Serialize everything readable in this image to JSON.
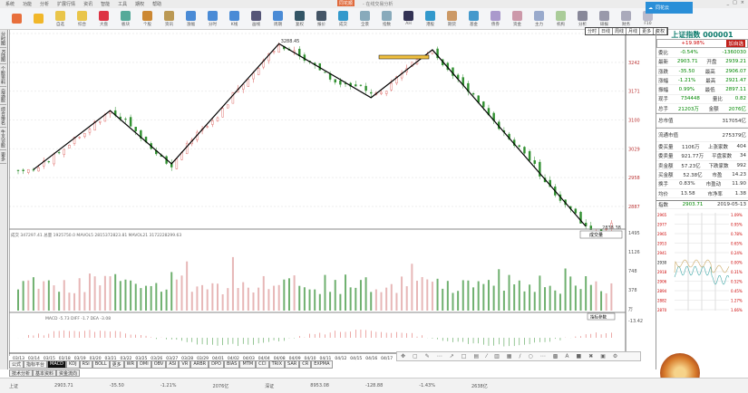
{
  "menu": [
    "系统",
    "功能",
    "分析",
    "扩展行情",
    "资讯",
    "智能",
    "工具",
    "期权",
    "帮助"
  ],
  "app": {
    "brand": "同花顺",
    "title": "- 在线交易分析",
    "window_controls": [
      "_",
      "□",
      "×"
    ],
    "cloud_label": "同花云"
  },
  "toolbar": [
    "",
    "",
    "自选",
    "综合",
    "大盘",
    "板块",
    "个股",
    "资讯",
    "涨幅",
    "分时",
    "K线",
    "画线",
    "周期",
    "复权",
    "报价",
    "成交",
    "全景",
    "指数",
    "AH",
    "港股",
    "期货",
    "基金",
    "债券",
    "资金",
    "主力",
    "机构",
    "分析",
    "研报",
    "财务",
    "F10"
  ],
  "left_tabs": [
    "分时图",
    "K线图",
    "个股资料",
    "自选股",
    "综合排名",
    "牛叉诊股",
    "更多"
  ],
  "periods": [
    "分时",
    "日线",
    "周线",
    "月线",
    "更多",
    "复权"
  ],
  "chart": {
    "price_axis": [
      "3313",
      "3242",
      "3171",
      "3100",
      "3029",
      "2958",
      "2887"
    ],
    "high_label": "3288.45",
    "low_label": "2838.38",
    "pivots": [
      {
        "date": "03/14",
        "price": 2978
      },
      {
        "date": "03/21",
        "price": 3123
      },
      {
        "date": "03/27",
        "price": 2992
      },
      {
        "date": "04/08",
        "price": 3288
      },
      {
        "date": "04/16",
        "price": 3155
      },
      {
        "date": "04/22",
        "price": 3273
      },
      {
        "date": "05/09",
        "price": 2838
      }
    ],
    "vol_legend": "成交 347297.41 总量 1925750.0 MAVOL5 2815372823.81 MAVOL21 3172228299.63",
    "vol_axis": [
      "1495",
      "1126",
      "748",
      "378",
      "万"
    ],
    "vol_button": "成交量",
    "macd_legend": "MACD -5.73 DIFF -1.7 DEA -3.08",
    "macd_button": "指标参数",
    "macd_axis": [
      "-13.42"
    ],
    "dates": [
      "03/13",
      "03/14",
      "03/15",
      "03/18",
      "03/19",
      "03/20",
      "03/21",
      "03/22",
      "03/25",
      "03/26",
      "03/27",
      "03/28",
      "03/29",
      "04/01",
      "04/02",
      "04/03",
      "04/04",
      "04/08",
      "04/09",
      "04/10",
      "04/11",
      "04/12",
      "04/15",
      "04/16",
      "04/17",
      "04/18",
      "04/19",
      "04/22",
      "04/23",
      "04/24",
      "04/25",
      "04/26",
      "04/29",
      "04/30",
      "05/06",
      "05/07",
      "05/08",
      "05/09",
      "05/10",
      "05/13"
    ],
    "colors": {
      "up": "#d9534f",
      "down": "#2f8f2f",
      "trend": "#000000"
    }
  },
  "indicator_tabs": [
    "公式",
    "指标平台",
    "MACD",
    "KDJ",
    "RSI",
    "BOLL",
    "更多",
    "WR",
    "DMI",
    "OBV",
    "ASI",
    "VR",
    "ARBR",
    "DPO",
    "BIAS",
    "MTM",
    "CCI",
    "TRIX",
    "SAR",
    "CR",
    "EXPMA"
  ],
  "page_tabs": [
    "技术分析",
    "基本资料",
    "资金流向"
  ],
  "quote": {
    "title": "上证指数 000001",
    "change_pct": "+19.98%",
    "button": "加自选",
    "rows": [
      [
        "委比",
        "-0.54%",
        "",
        "-1360030"
      ],
      [
        "最新",
        "2903.71",
        "开盘",
        "2939.21"
      ],
      [
        "涨跌",
        "-35.50",
        "最高",
        "2906.07"
      ],
      [
        "涨幅",
        "-1.21%",
        "最高",
        "2921.47"
      ],
      [
        "振幅",
        "0.99%",
        "最低",
        "2897.11"
      ],
      [
        "现手",
        "734448",
        "量比",
        "0.82"
      ],
      [
        "总手",
        "21203万",
        "金额",
        "2076亿"
      ]
    ],
    "market_cap": [
      [
        "总市值",
        "317054亿"
      ],
      [
        "流通市值",
        "275379亿"
      ]
    ],
    "stats": [
      [
        "委买量",
        "1106万",
        "上涨家数",
        "404"
      ],
      [
        "委卖量",
        "921.77万",
        "平盘家数",
        "34"
      ],
      [
        "卖金额",
        "57.23亿",
        "下跌家数",
        "992"
      ],
      [
        "买金额",
        "52.38亿",
        "市盈",
        "14.23"
      ],
      [
        "换手",
        "0.83%",
        "市盈动",
        "11.90"
      ],
      [
        "均价",
        "13.58",
        "市净率",
        "1.38"
      ]
    ],
    "mini": {
      "label": "指数",
      "price": "2903.71",
      "date": "2019-05-13",
      "axis_left": [
        "2965",
        "2977",
        "2965",
        "2953",
        "2941",
        "2930",
        "2918",
        "2906",
        "2894",
        "2882",
        "2870"
      ],
      "axis_right": [
        "1.09%",
        "0.95%",
        "0.78%",
        "0.65%",
        "0.24%",
        "0.00%",
        "0.31%",
        "0.52%",
        "0.45%",
        "1.27%",
        "1.66%"
      ]
    }
  },
  "status": [
    "上证",
    "2903.71",
    "-35.50",
    "-1.21%",
    "2076亿",
    "深证",
    "8953.08",
    "-128.88",
    "-1.43%",
    "2638亿"
  ]
}
